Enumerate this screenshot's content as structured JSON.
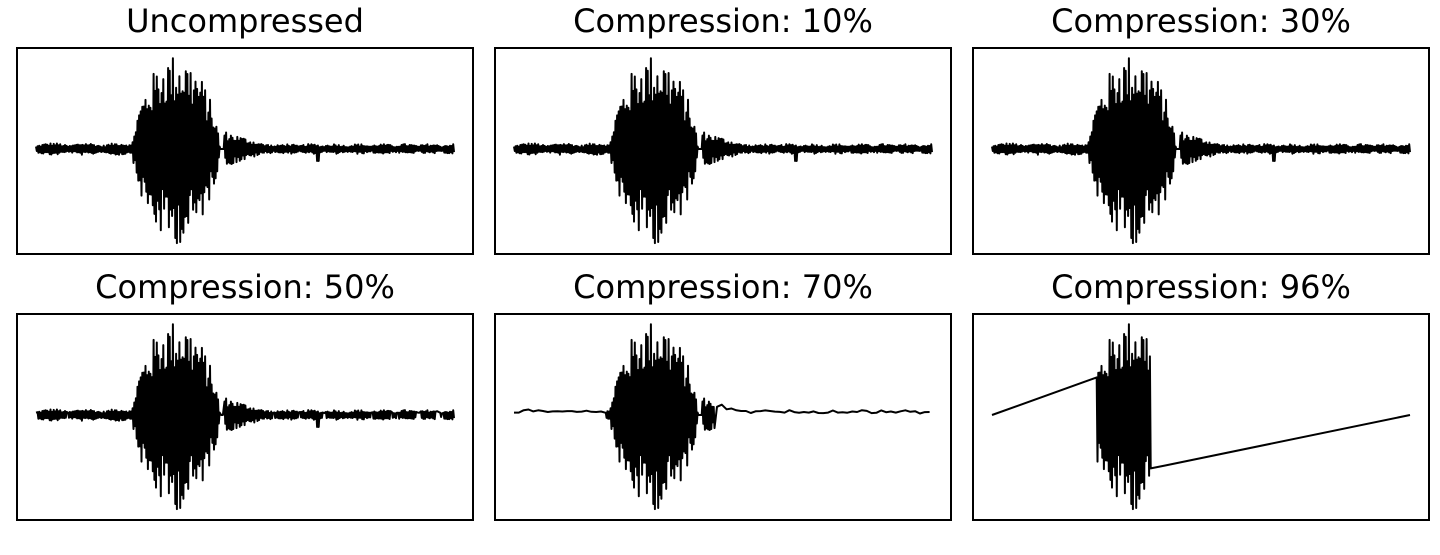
{
  "chart_data": [
    {
      "type": "line",
      "title": "Uncompressed",
      "xlabel": "",
      "ylabel": "",
      "ticks": "none",
      "grid": false,
      "compression": 0
    },
    {
      "type": "line",
      "title": "Compression: 10%",
      "xlabel": "",
      "ylabel": "",
      "ticks": "none",
      "grid": false,
      "compression": 10
    },
    {
      "type": "line",
      "title": "Compression: 30%",
      "xlabel": "",
      "ylabel": "",
      "ticks": "none",
      "grid": false,
      "compression": 30
    },
    {
      "type": "line",
      "title": "Compression: 50%",
      "xlabel": "",
      "ylabel": "",
      "ticks": "none",
      "grid": false,
      "compression": 50
    },
    {
      "type": "line",
      "title": "Compression: 70%",
      "xlabel": "",
      "ylabel": "",
      "ticks": "none",
      "grid": false,
      "compression": 70
    },
    {
      "type": "line",
      "title": "Compression: 96%",
      "xlabel": "",
      "ylabel": "",
      "ticks": "none",
      "grid": false,
      "compression": 96
    }
  ]
}
